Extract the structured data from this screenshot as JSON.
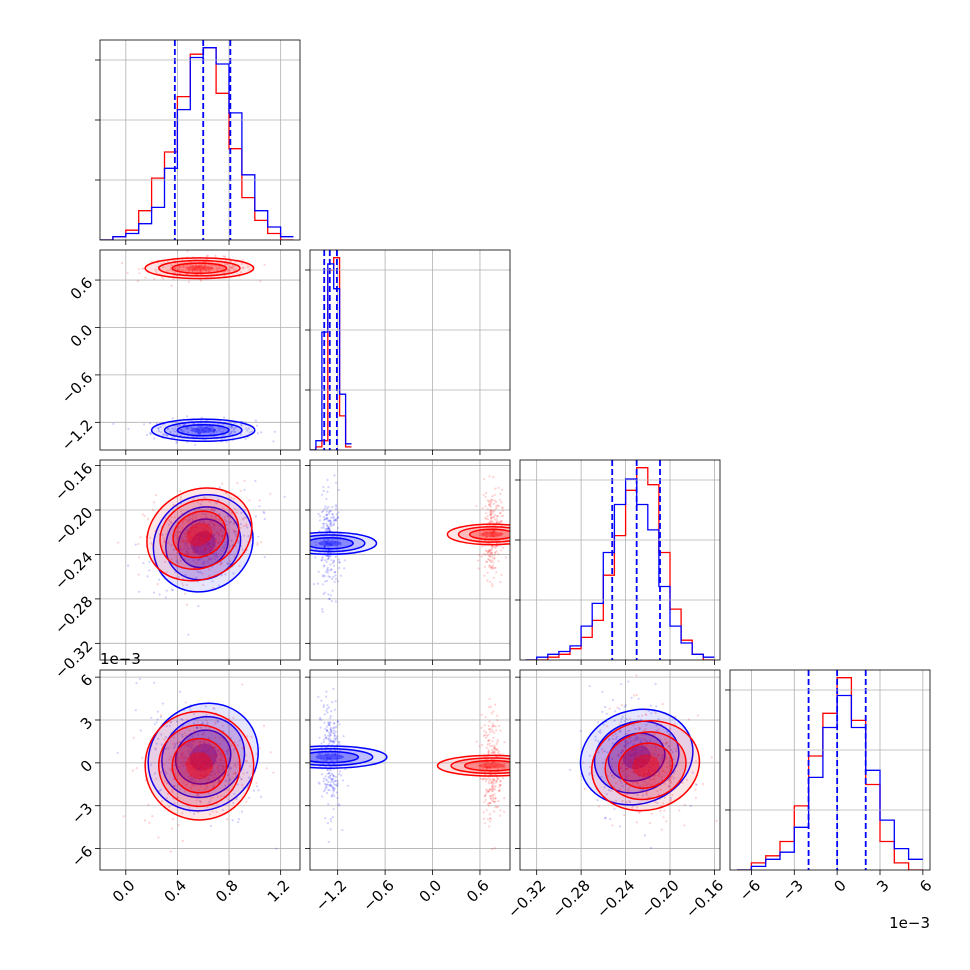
{
  "chart_data": {
    "type": "corner",
    "title": "",
    "grid": true,
    "params": [
      {
        "range": [
          -0.2,
          1.35
        ],
        "ticks": [
          0.0,
          0.4,
          0.8,
          1.2
        ],
        "tick_labels": [
          "0.0",
          "0.4",
          "0.8",
          "1.2"
        ],
        "offset_text": ""
      },
      {
        "range": [
          -1.55,
          0.98
        ],
        "ticks": [
          -1.2,
          -0.6,
          0.0,
          0.6
        ],
        "tick_labels": [
          "−1.2",
          "−0.6",
          "0.0",
          "0.6"
        ],
        "offset_text": ""
      },
      {
        "range": [
          -0.335,
          -0.155
        ],
        "ticks": [
          -0.32,
          -0.28,
          -0.24,
          -0.2,
          -0.16
        ],
        "tick_labels": [
          "−0.32",
          "−0.28",
          "−0.24",
          "−0.20",
          "−0.16"
        ],
        "offset_text": ""
      },
      {
        "range": [
          -7.5,
          6.5
        ],
        "ticks": [
          -6,
          -3,
          0,
          3,
          6
        ],
        "tick_labels": [
          "−6",
          "−3",
          "0",
          "3",
          "6"
        ],
        "offset_text": "1e−3"
      }
    ],
    "series": [
      {
        "color": "#0000ff",
        "means": [
          0.6,
          -1.3,
          -0.23,
          0.4
        ],
        "stds": [
          0.2,
          0.07,
          0.021,
          2.0
        ],
        "correlation": {
          "0-2": 0.4,
          "0-3": -0.45,
          "2-3": -0.15
        }
      },
      {
        "color": "#ff0000",
        "means": [
          0.57,
          0.75,
          -0.222,
          -0.2
        ],
        "stds": [
          0.21,
          0.065,
          0.02,
          1.9
        ],
        "correlation": {
          "0-2": 0.25,
          "0-3": 0.2,
          "2-3": -0.1
        }
      }
    ],
    "quantile_lines": {
      "color": "#0000ff",
      "values": [
        [
          0.38,
          0.6,
          0.81
        ],
        [
          -1.37,
          -1.3,
          -1.21
        ],
        [
          -0.252,
          -0.23,
          -0.209
        ],
        [
          -2.0,
          0.0,
          2.0
        ]
      ]
    },
    "histograms": [
      {
        "param": 0,
        "bin_edges": [
          -0.2,
          -0.1,
          0.0,
          0.1,
          0.2,
          0.3,
          0.4,
          0.5,
          0.6,
          0.7,
          0.8,
          0.9,
          1.0,
          1.1,
          1.2,
          1.3
        ],
        "blue": [
          0,
          1,
          2,
          5,
          10,
          22,
          40,
          56,
          59,
          54,
          39,
          20,
          9,
          4,
          1
        ],
        "red": [
          0,
          1,
          3,
          9,
          19,
          27,
          44,
          57,
          59,
          45,
          28,
          13,
          6,
          2,
          0
        ]
      },
      {
        "param": 1,
        "bin_edges": [
          -1.55,
          -1.475,
          -1.4,
          -1.325,
          -1.25,
          -1.175,
          -1.1,
          -1.025,
          0.55,
          0.625,
          0.7,
          0.775,
          0.85,
          0.925
        ],
        "blue": [
          0,
          3,
          38,
          60,
          52,
          18,
          2
        ],
        "red": [
          0,
          1,
          3,
          58,
          62,
          11,
          1
        ]
      },
      {
        "param": 2,
        "bin_edges": [
          -0.33,
          -0.32,
          -0.31,
          -0.3,
          -0.29,
          -0.28,
          -0.27,
          -0.26,
          -0.25,
          -0.24,
          -0.23,
          -0.22,
          -0.21,
          -0.2,
          -0.19,
          -0.18,
          -0.17,
          -0.16
        ],
        "blue": [
          0,
          1,
          2,
          3,
          5,
          12,
          20,
          38,
          55,
          64,
          55,
          46,
          26,
          12,
          6,
          2,
          1
        ],
        "red": [
          0,
          0,
          1,
          2,
          4,
          8,
          14,
          30,
          44,
          60,
          68,
          62,
          38,
          18,
          7,
          2,
          0
        ]
      },
      {
        "param": 3,
        "bin_edges": [
          -7,
          -6,
          -5,
          -4,
          -3,
          -2,
          -1,
          0,
          1,
          2,
          3,
          4,
          5,
          6
        ],
        "blue": [
          0,
          1,
          3,
          5,
          12,
          26,
          40,
          49,
          40,
          28,
          14,
          6,
          3
        ],
        "red": [
          0,
          2,
          4,
          8,
          18,
          32,
          44,
          54,
          42,
          24,
          8,
          2,
          0
        ]
      }
    ]
  }
}
